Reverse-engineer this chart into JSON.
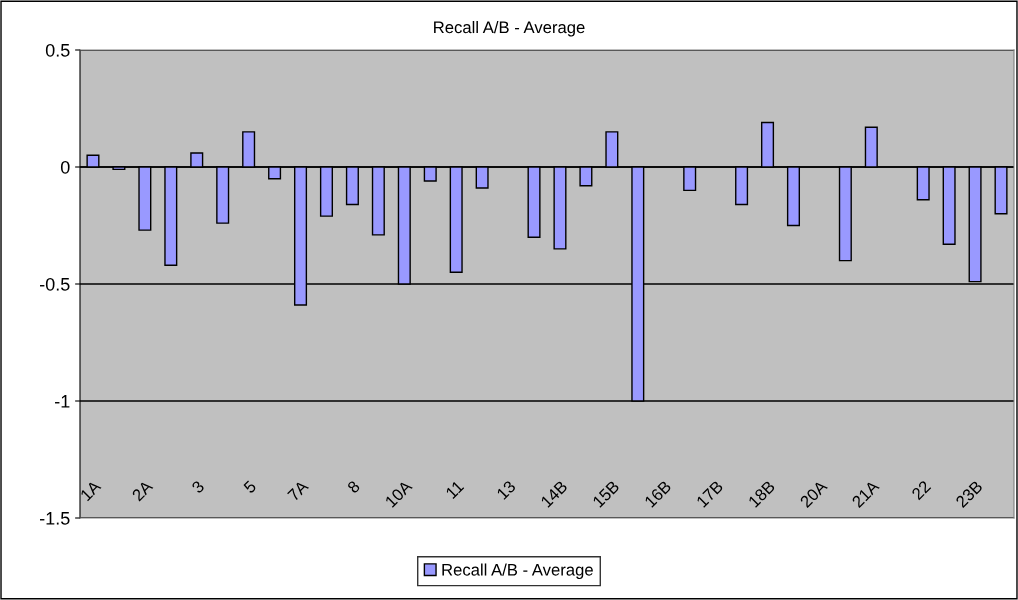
{
  "chart_data": {
    "type": "bar",
    "title": "Recall A/B - Average",
    "categories": [
      "1A",
      null,
      "2A",
      null,
      "3",
      null,
      "5",
      null,
      "7A",
      null,
      "8",
      null,
      "10A",
      null,
      "11",
      null,
      "13",
      null,
      "14B",
      null,
      "15B",
      null,
      "16B",
      null,
      "17B",
      null,
      "18B",
      null,
      "20A",
      null,
      "21A",
      null,
      "22",
      null,
      "23B",
      null
    ],
    "series": [
      {
        "name": "Recall A/B - Average",
        "color": "#9999ff",
        "values": [
          0.05,
          -0.01,
          -0.27,
          -0.42,
          0.06,
          -0.24,
          0.15,
          -0.05,
          -0.59,
          -0.21,
          -0.16,
          -0.29,
          -0.5,
          -0.06,
          -0.45,
          -0.09,
          null,
          -0.3,
          -0.35,
          -0.08,
          0.15,
          -1.0,
          null,
          -0.1,
          null,
          -0.16,
          0.19,
          -0.25,
          null,
          -0.4,
          0.17,
          null,
          -0.14,
          -0.33,
          -0.49,
          -0.2
        ]
      }
    ],
    "ylim": [
      -1.5,
      0.5
    ],
    "yticks": [
      -1.5,
      -1,
      -0.5,
      0,
      0.5
    ],
    "grid": "y",
    "legend": "bottom"
  }
}
